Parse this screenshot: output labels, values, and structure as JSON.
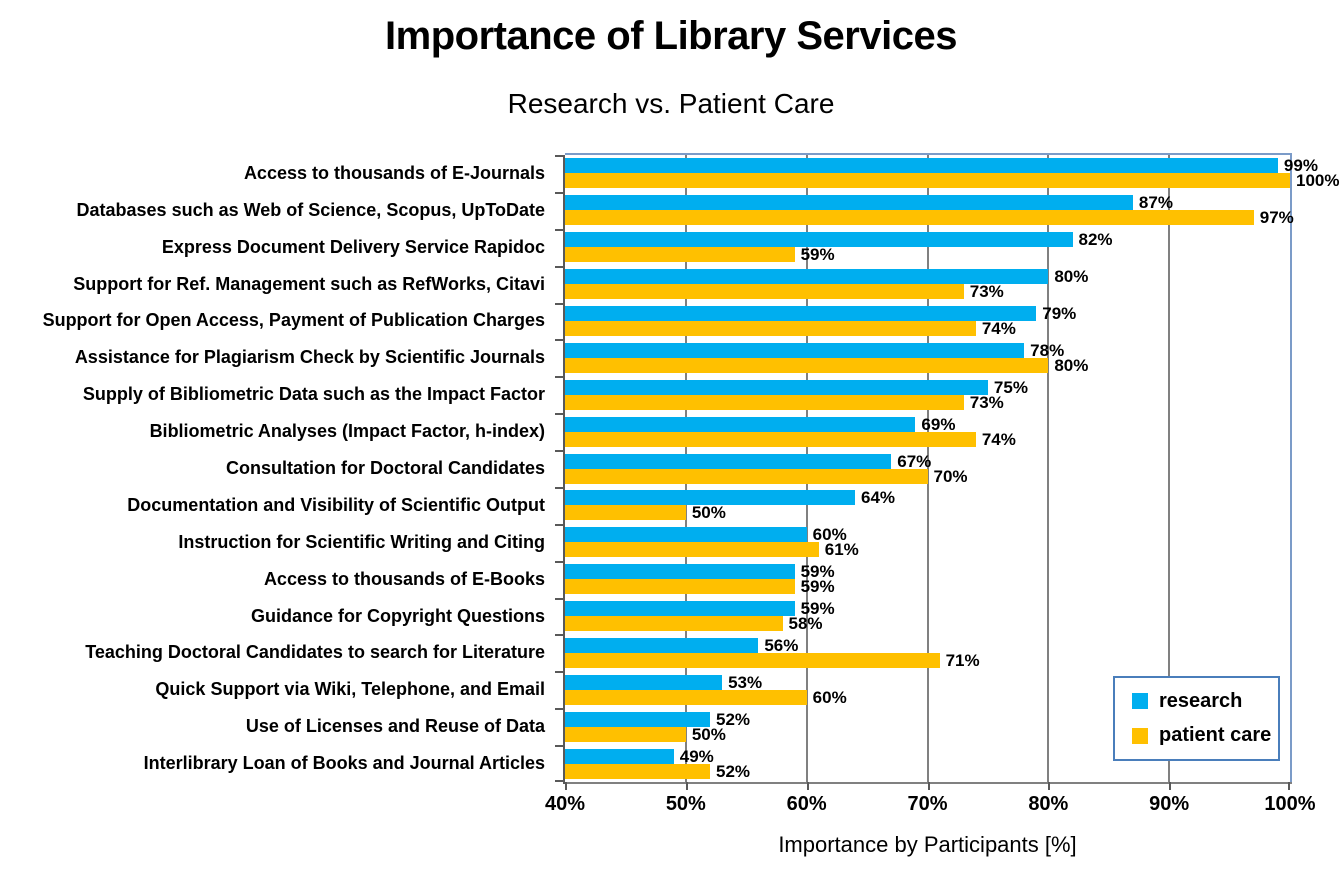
{
  "chart_data": {
    "type": "bar",
    "orientation": "horizontal",
    "title": "Importance of Library Services",
    "subtitle": "Research vs. Patient Care",
    "xlabel": "Importance by Participants [%]",
    "xlim": [
      40,
      100
    ],
    "xtick_values": [
      40,
      50,
      60,
      70,
      80,
      90,
      100
    ],
    "xticks": [
      "40%",
      "50%",
      "60%",
      "70%",
      "80%",
      "90%",
      "100%"
    ],
    "grid": true,
    "legend_position": "bottom-right",
    "categories": [
      "Access to thousands of E-Journals",
      "Databases such as Web of Science, Scopus, UpToDate",
      "Express Document Delivery Service Rapidoc",
      "Support for Ref. Management such as RefWorks, Citavi",
      "Support for Open Access, Payment of Publication Charges",
      "Assistance for Plagiarism Check by Scientific Journals",
      "Supply of Bibliometric Data such as the Impact Factor",
      "Bibliometric Analyses (Impact Factor, h-index)",
      "Consultation for Doctoral Candidates",
      "Documentation and Visibility of Scientific Output",
      "Instruction for Scientific Writing and Citing",
      "Access to thousands of E-Books",
      "Guidance for Copyright Questions",
      "Teaching Doctoral Candidates to search for Literature",
      "Quick Support via Wiki, Telephone, and Email",
      "Use of Licenses and Reuse of Data",
      "Interlibrary Loan of Books and Journal Articles"
    ],
    "series": [
      {
        "name": "research",
        "color": "#00AEEF",
        "values": [
          99,
          87,
          82,
          80,
          79,
          78,
          75,
          69,
          67,
          64,
          60,
          59,
          59,
          56,
          53,
          52,
          49
        ],
        "labels": [
          "99%",
          "87%",
          "82%",
          "80%",
          "79%",
          "78%",
          "75%",
          "69%",
          "67%",
          "64%",
          "60%",
          "59%",
          "59%",
          "56%",
          "53%",
          "52%",
          "49%"
        ]
      },
      {
        "name": "patient care",
        "color": "#FFC000",
        "values": [
          100,
          97,
          59,
          73,
          74,
          80,
          73,
          74,
          70,
          50,
          61,
          59,
          58,
          71,
          60,
          50,
          52
        ],
        "labels": [
          "100%",
          "97%",
          "59%",
          "73%",
          "74%",
          "80%",
          "73%",
          "74%",
          "70%",
          "50%",
          "61%",
          "59%",
          "58%",
          "71%",
          "60%",
          "50%",
          "52%"
        ]
      }
    ],
    "colors": {
      "gridline": "#808080",
      "plot_border": "#7B9BC8",
      "legend_border": "#4A7EBB",
      "axis_line": "#595959",
      "text": "#000000",
      "background": "#FFFFFF"
    }
  }
}
